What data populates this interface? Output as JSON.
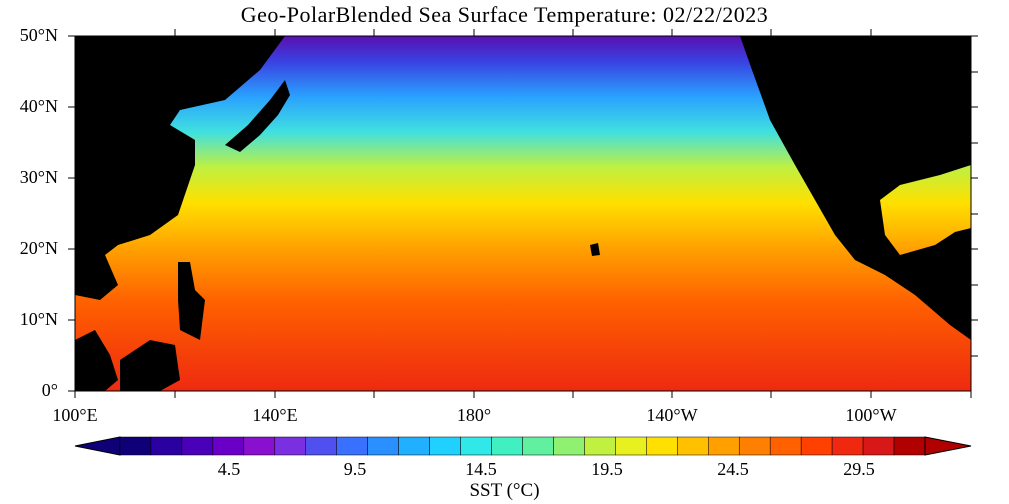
{
  "title": "Geo-PolarBlended Sea Surface Temperature: 02/22/2023",
  "map": {
    "lon_range": [
      "100°E",
      "60°W"
    ],
    "lat_range": [
      "0°",
      "50°N"
    ]
  },
  "lat_labels": [
    "50°N",
    "40°N",
    "30°N",
    "20°N",
    "10°N",
    "0°"
  ],
  "lon_labels": [
    "100°E",
    "140°E",
    "180°",
    "140°W",
    "100°W"
  ],
  "colorbar": {
    "title": "SST (°C)",
    "tick_labels": [
      "4.5",
      "9.5",
      "14.5",
      "19.5",
      "24.5",
      "29.5"
    ],
    "colors": [
      "#100078",
      "#2a00a0",
      "#4a00b8",
      "#6a00c8",
      "#8a10d0",
      "#7a30e0",
      "#5050f0",
      "#3a70ff",
      "#2a90ff",
      "#20b0ff",
      "#20d0ff",
      "#30e8e8",
      "#40f0c0",
      "#60f0a0",
      "#90f070",
      "#c0f040",
      "#e8f020",
      "#ffe000",
      "#ffc000",
      "#ffa000",
      "#ff8000",
      "#ff6000",
      "#ff4000",
      "#f02810",
      "#d81818",
      "#b00000"
    ]
  }
}
